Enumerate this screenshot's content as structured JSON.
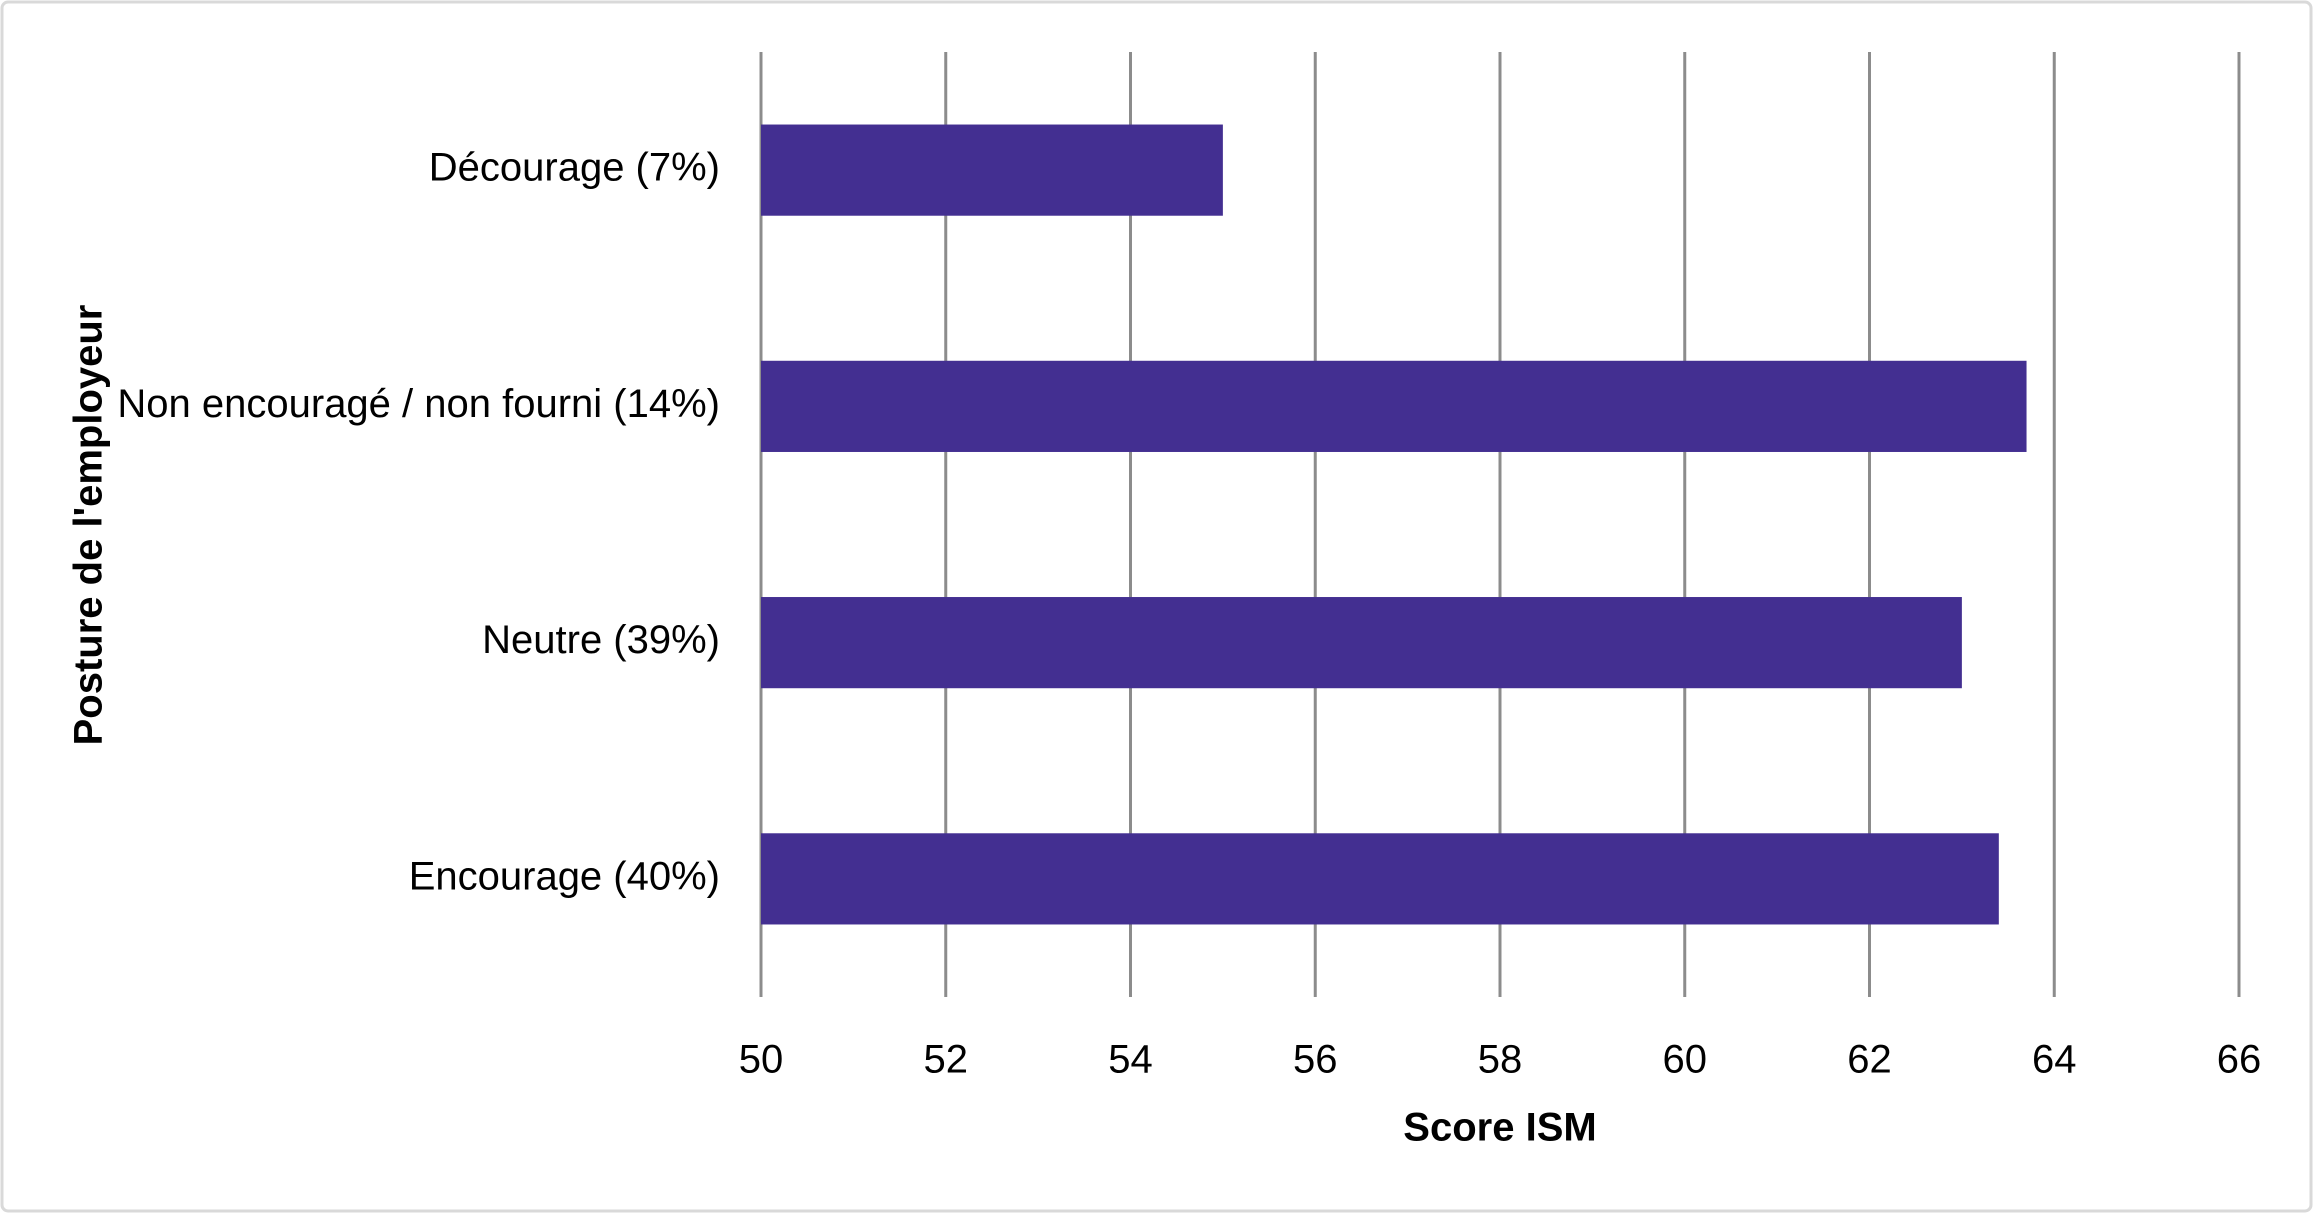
{
  "chart_data": {
    "type": "bar",
    "orientation": "horizontal",
    "x_label": "Score ISM",
    "y_label": "Posture de l'employeur",
    "categories": [
      "Décourage (7%)",
      "Non encouragé / non fourni (14%)",
      "Neutre (39%)",
      "Encourage (40%)"
    ],
    "values": [
      55.0,
      63.7,
      63.0,
      63.4
    ],
    "color": "#432f91",
    "xlim": [
      50,
      66
    ],
    "xticks": [
      50,
      52,
      54,
      56,
      58,
      60,
      62,
      64,
      66
    ],
    "grid": true
  }
}
